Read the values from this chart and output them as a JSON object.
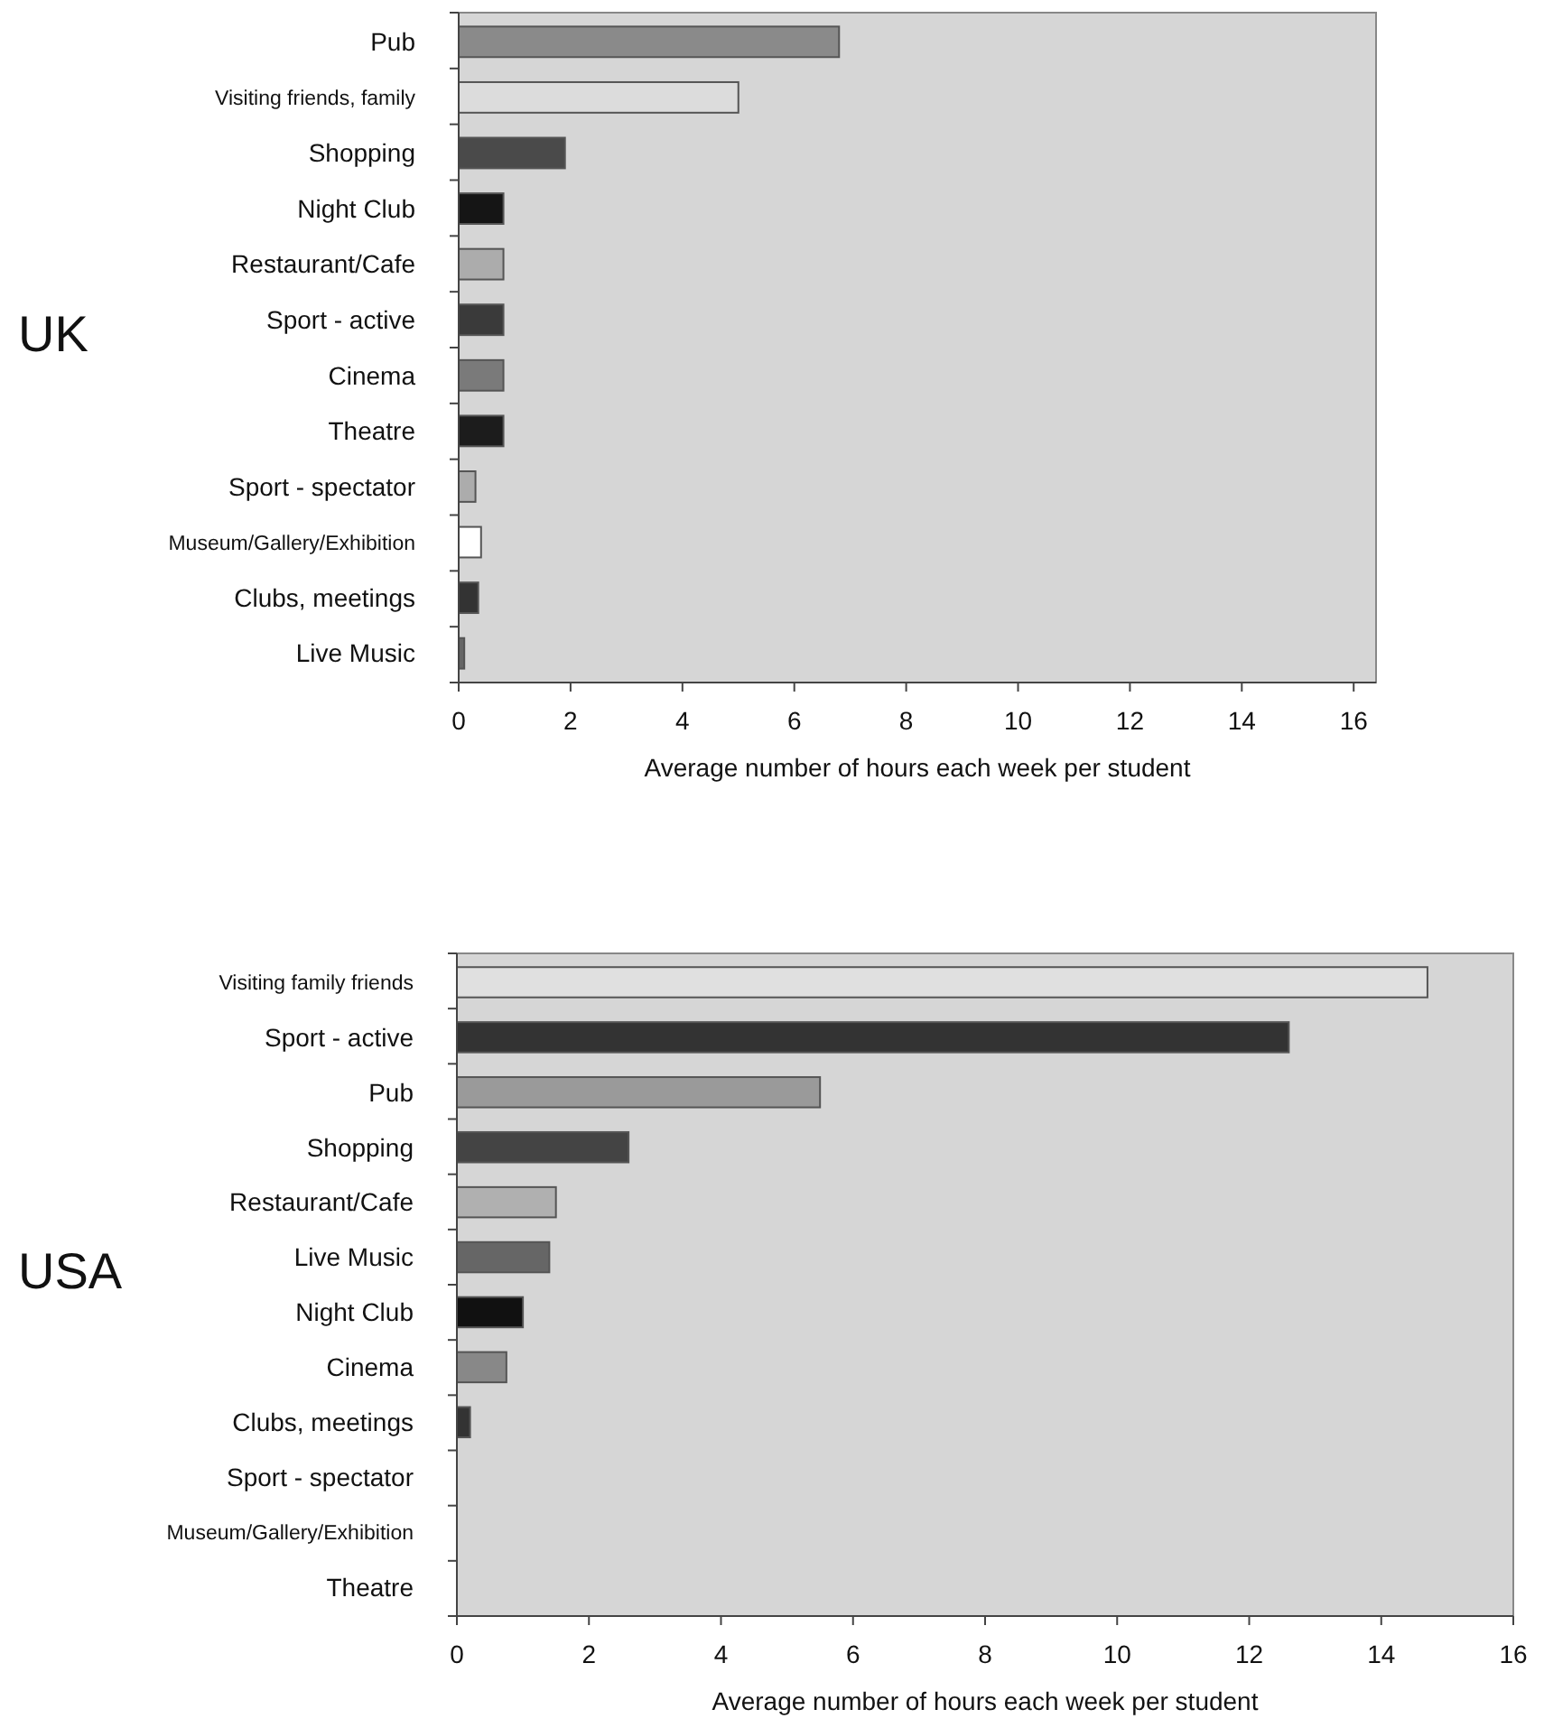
{
  "chart_data": [
    {
      "type": "bar",
      "orientation": "horizontal",
      "title": "UK",
      "xlabel": "Average number of hours each week per student",
      "categories": [
        "Pub",
        "Visiting friends, family",
        "Shopping",
        "Night Club",
        "Restaurant/Cafe",
        "Sport - active",
        "Cinema",
        "Theatre",
        "Sport - spectator",
        "Museum/Gallery/Exhibition",
        "Clubs, meetings",
        "Live Music"
      ],
      "values": [
        6.8,
        5.0,
        1.9,
        0.8,
        0.8,
        0.8,
        0.8,
        0.8,
        0.3,
        0.4,
        0.35,
        0.1
      ],
      "colors": [
        "#8a8a8a",
        "#dcdcdc",
        "#4a4a4a",
        "#151515",
        "#acacac",
        "#3a3a3a",
        "#7a7a7a",
        "#1c1c1c",
        "#acacac",
        "#ffffff",
        "#333333",
        "#666666"
      ],
      "xlim": [
        0,
        16.4
      ],
      "xticks": [
        0,
        2,
        4,
        6,
        8,
        10,
        12,
        14,
        16
      ]
    },
    {
      "type": "bar",
      "orientation": "horizontal",
      "title": "USA",
      "xlabel": "Average number of hours each week per student",
      "categories": [
        "Visiting family friends",
        "Sport - active",
        "Pub",
        "Shopping",
        "Restaurant/Cafe",
        "Live Music",
        "Night Club",
        "Cinema",
        "Clubs, meetings",
        "Sport - spectator",
        "Museum/Gallery/Exhibition",
        "Theatre"
      ],
      "values": [
        14.7,
        12.6,
        5.5,
        2.6,
        1.5,
        1.4,
        1.0,
        0.75,
        0.2,
        0,
        0,
        0
      ],
      "colors": [
        "#e0e0e0",
        "#333333",
        "#9a9a9a",
        "#444444",
        "#b0b0b0",
        "#666666",
        "#111111",
        "#888888",
        "#333333",
        "#acacac",
        "#ffffff",
        "#1c1c1c"
      ],
      "xlim": [
        0,
        16
      ],
      "xticks": [
        0,
        2,
        4,
        6,
        8,
        10,
        12,
        14,
        16
      ]
    }
  ]
}
